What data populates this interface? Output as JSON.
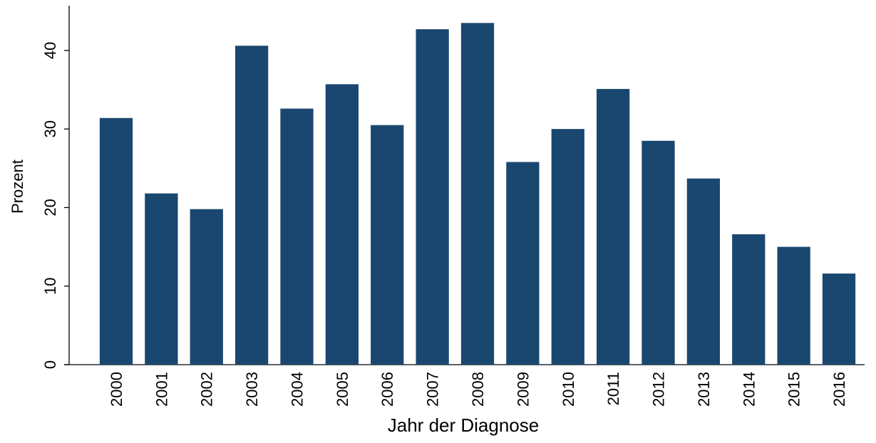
{
  "chart_data": {
    "type": "bar",
    "xlabel": "Jahr der Diagnose",
    "ylabel": "Prozent",
    "categories": [
      "2000",
      "2001",
      "2002",
      "2003",
      "2004",
      "2005",
      "2006",
      "2007",
      "2008",
      "2009",
      "2010",
      "2011",
      "2012",
      "2013",
      "2014",
      "2015",
      "2016"
    ],
    "values": [
      31.4,
      21.8,
      19.8,
      40.6,
      32.6,
      35.7,
      30.5,
      42.7,
      43.5,
      25.8,
      30.0,
      35.1,
      28.5,
      23.7,
      16.6,
      15.0,
      11.6
    ],
    "color": "#1a476f",
    "ylim": [
      0,
      45.7
    ],
    "yticks": [
      0,
      10,
      20,
      30,
      40
    ],
    "grid": false
  }
}
